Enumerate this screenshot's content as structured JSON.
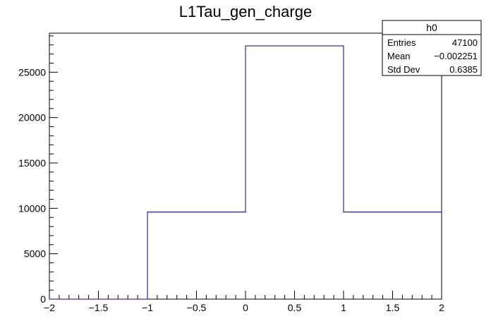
{
  "chart_data": {
    "type": "bar",
    "title": "L1Tau_gen_charge",
    "xlabel": "",
    "ylabel": "",
    "bin_edges": [
      -2,
      -1,
      0,
      1,
      2
    ],
    "values": [
      0,
      9600,
      27900,
      9600
    ],
    "xlim": [
      -2,
      2
    ],
    "ylim": [
      0,
      29300
    ],
    "x_ticks": [
      {
        "value": -2,
        "label": "−2"
      },
      {
        "value": -1.5,
        "label": "−1.5"
      },
      {
        "value": -1,
        "label": "−1"
      },
      {
        "value": -0.5,
        "label": "−0.5"
      },
      {
        "value": 0,
        "label": "0"
      },
      {
        "value": 0.5,
        "label": "0.5"
      },
      {
        "value": 1,
        "label": "1"
      },
      {
        "value": 1.5,
        "label": "1.5"
      },
      {
        "value": 2,
        "label": "2"
      }
    ],
    "y_ticks": [
      {
        "value": 0,
        "label": "0"
      },
      {
        "value": 5000,
        "label": "5000"
      },
      {
        "value": 10000,
        "label": "10000"
      },
      {
        "value": 15000,
        "label": "15000"
      },
      {
        "value": 20000,
        "label": "20000"
      },
      {
        "value": 25000,
        "label": "25000"
      }
    ],
    "line_color": "#000080",
    "grid": false,
    "legend": "none",
    "stats_box": {
      "name": "h0",
      "placement": "top-right",
      "rows": [
        {
          "label": "Entries",
          "value": "47100"
        },
        {
          "label": "Mean",
          "value": "−0.002251"
        },
        {
          "label": "Std Dev",
          "value": "0.6385"
        }
      ]
    }
  }
}
